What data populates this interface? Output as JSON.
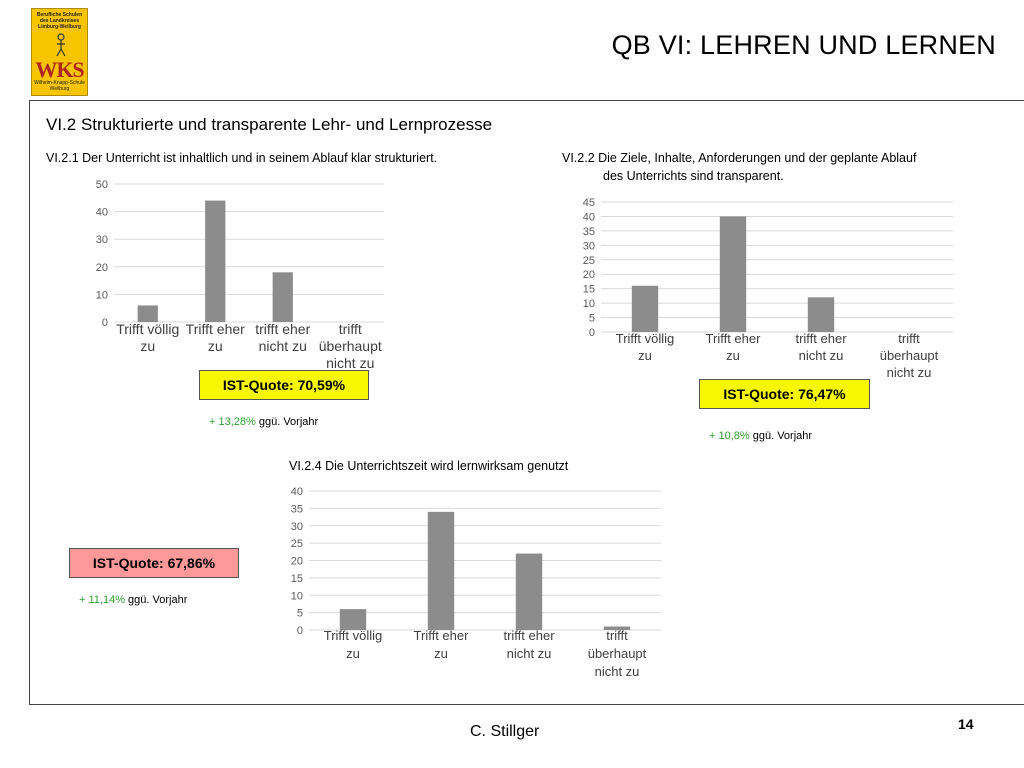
{
  "logo": {
    "line1": "Berufliche Schulen des Landkreises Limburg-Weilburg",
    "monogram": "WKS",
    "line3": "Wilhelm-Knapp-Schule Weilburg"
  },
  "header": {
    "title": "QB VI: LEHREN UND LERNEN"
  },
  "section": {
    "title": "VI.2 Strukturierte und transparente Lehr- und Lernprozesse"
  },
  "charts": [
    {
      "title_lines": [
        "VI.2.1 Der Unterricht ist inhaltlich und in seinem Ablauf klar strukturiert."
      ],
      "quote": {
        "label": "IST-Quote: 70,59%",
        "delta": "+ 13,28%",
        "note": " ggü. Vorjahr",
        "color": "#f7f700"
      }
    },
    {
      "title_lines": [
        "VI.2.2 Die Ziele, Inhalte, Anforderungen und der geplante Ablauf",
        "des Unterrichts sind transparent."
      ],
      "quote": {
        "label": "IST-Quote: 76,47%",
        "delta": "+ 10,8%",
        "note": " ggü. Vorjahr",
        "color": "#f7f700"
      }
    },
    {
      "title_lines": [
        "VI.2.4 Die Unterrichtszeit wird lernwirksam genutzt"
      ],
      "quote": {
        "label": "IST-Quote: 67,86%",
        "delta": "+ 11,14%",
        "note": " ggü. Vorjahr",
        "color": "#ff9999"
      }
    }
  ],
  "chart_data": [
    {
      "type": "bar",
      "title": "VI.2.1 Der Unterricht ist inhaltlich und in seinem Ablauf klar strukturiert.",
      "categories": [
        [
          "Trifft völlig",
          "zu"
        ],
        [
          "Trifft eher",
          "zu"
        ],
        [
          "trifft eher",
          "nicht zu"
        ],
        [
          "trifft",
          "überhaupt",
          "nicht zu"
        ]
      ],
      "values": [
        6,
        44,
        18,
        0
      ],
      "ylim": [
        0,
        50
      ],
      "yticks": [
        0,
        10,
        20,
        30,
        40,
        50
      ],
      "grid": true,
      "bar_color": "#8c8c8c"
    },
    {
      "type": "bar",
      "title": "VI.2.2 Die Ziele, Inhalte, Anforderungen und der geplante Ablauf des Unterrichts sind transparent.",
      "categories": [
        [
          "Trifft völlig",
          "zu"
        ],
        [
          "Trifft eher",
          "zu"
        ],
        [
          "trifft eher",
          "nicht zu"
        ],
        [
          "trifft",
          "überhaupt",
          "nicht zu"
        ]
      ],
      "values": [
        16,
        40,
        12,
        0
      ],
      "ylim": [
        0,
        45
      ],
      "yticks": [
        0,
        5,
        10,
        15,
        20,
        25,
        30,
        35,
        40,
        45
      ],
      "grid": true,
      "bar_color": "#8c8c8c"
    },
    {
      "type": "bar",
      "title": "VI.2.4 Die Unterrichtszeit wird lernwirksam genutzt",
      "categories": [
        [
          "Trifft völlig",
          "zu"
        ],
        [
          "Trifft eher",
          "zu"
        ],
        [
          "trifft eher",
          "nicht zu"
        ],
        [
          "trifft",
          "überhaupt",
          "nicht zu"
        ]
      ],
      "values": [
        6,
        34,
        22,
        1
      ],
      "ylim": [
        0,
        40
      ],
      "yticks": [
        0,
        5,
        10,
        15,
        20,
        25,
        30,
        35,
        40
      ],
      "grid": true,
      "bar_color": "#8c8c8c"
    }
  ],
  "footer": {
    "author": "C. Stillger",
    "page": "14"
  }
}
